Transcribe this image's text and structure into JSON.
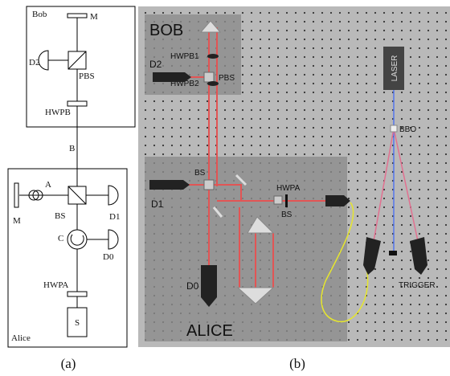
{
  "panel_a": {
    "caption": "(a)",
    "bob_box": {
      "title": "Bob",
      "mirror": "M",
      "detector": "D2",
      "splitter": "PBS",
      "waveplate": "HWPB"
    },
    "channel": "B",
    "alice_box": {
      "title": "Alice",
      "arm": "A",
      "mirror": "M",
      "splitter": "BS",
      "detector_1": "D1",
      "circulator": "C",
      "detector_0": "D0",
      "waveplate": "HWPA",
      "source": "S"
    }
  },
  "panel_b": {
    "caption": "(b)",
    "bob_region": {
      "title": "BOB",
      "waveplate_1": "HWPB1",
      "detector": "D2",
      "splitter": "PBS",
      "waveplate_2": "HWPB2"
    },
    "alice_region": {
      "title": "ALICE",
      "splitter": "BS",
      "detector_1": "D1",
      "waveplate": "HWPA",
      "splitter_2": "BS",
      "detector_0": "D0"
    },
    "source": {
      "laser": "LASER",
      "crystal": "BBO",
      "trigger": "TRIGGER"
    }
  }
}
